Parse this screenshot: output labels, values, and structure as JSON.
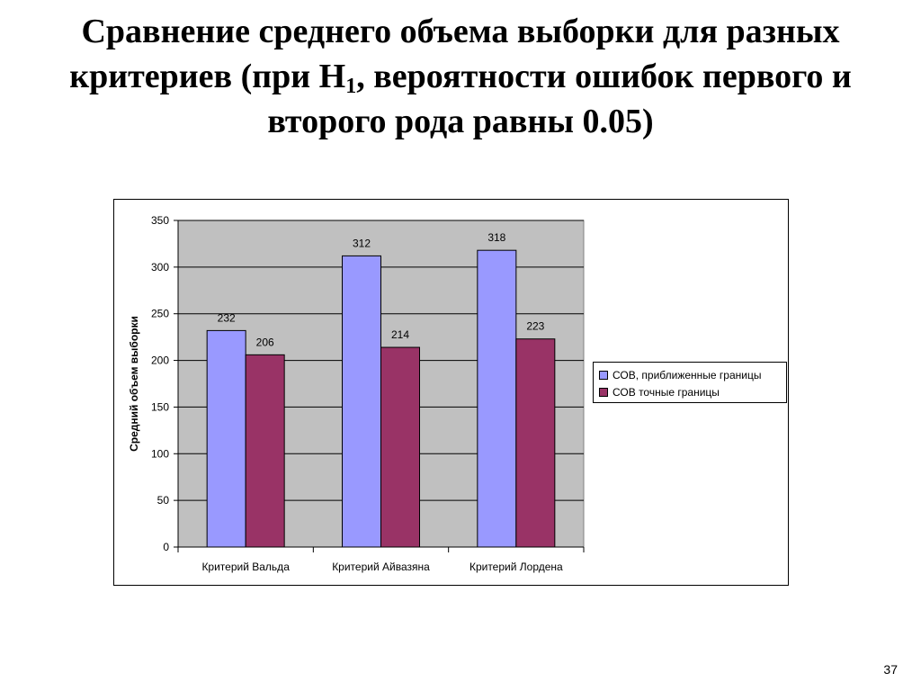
{
  "slide": {
    "title_line1": "Сравнение среднего объема выборки для разных",
    "title_line2_pre": "критериев (при H",
    "title_line2_sub": "1",
    "title_line2_post": ", вероятности ошибок первого и",
    "title_line3": "второго рода равны 0.05)",
    "page_number": "37"
  },
  "colors": {
    "plot_bg": "#c0c0c0",
    "series1": "#9999ff",
    "series2": "#993366",
    "gridline": "#000000"
  },
  "chart_data": {
    "type": "bar",
    "categories": [
      "Критерий Вальда",
      "Критерий Айвазяна",
      "Критерий Лордена"
    ],
    "series": [
      {
        "name": "СОВ, приближенные границы",
        "values": [
          232,
          312,
          318
        ]
      },
      {
        "name": "СОВ точные границы",
        "values": [
          206,
          214,
          223
        ]
      }
    ],
    "ylabel": "Средний объем выборки",
    "xlabel": "",
    "ylim": [
      0,
      350
    ],
    "yticks": [
      0,
      50,
      100,
      150,
      200,
      250,
      300,
      350
    ],
    "grid": true,
    "legend_position": "right"
  }
}
